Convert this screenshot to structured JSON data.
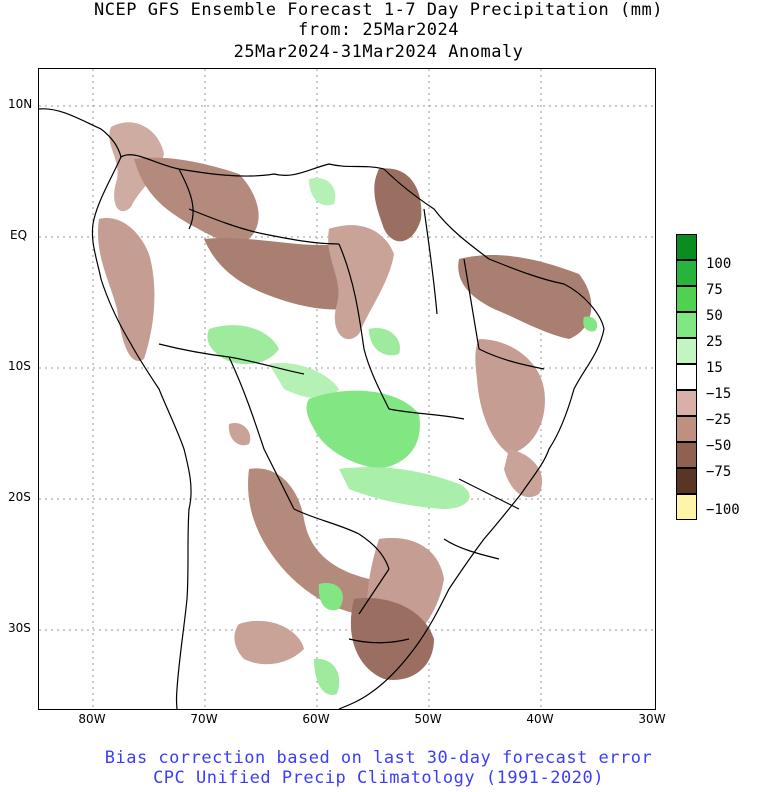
{
  "title": {
    "line1": "NCEP GFS Ensemble Forecast 1-7 Day Precipitation (mm)",
    "line2": "from: 25Mar2024",
    "line3": "25Mar2024-31Mar2024 Anomaly"
  },
  "axes": {
    "lat_labels": [
      "10N",
      "EQ",
      "10S",
      "20S",
      "30S"
    ],
    "lon_labels": [
      "80W",
      "70W",
      "60W",
      "50W",
      "40W",
      "30W"
    ]
  },
  "colorbar": {
    "labels": [
      "100",
      "75",
      "50",
      "25",
      "15",
      "−15",
      "−25",
      "−50",
      "−75",
      "−100"
    ],
    "colors": [
      "#0a8c1e",
      "#28b43c",
      "#50d250",
      "#82e682",
      "#c3f5c3",
      "#ffffff",
      "#d9b0a8",
      "#bf8f80",
      "#8e6150",
      "#5a3525",
      "#fff5a8"
    ]
  },
  "footer": {
    "line1": "Bias correction based on last 30-day forecast error",
    "line2": "CPC Unified Precip Climatology (1991-2020)"
  }
}
